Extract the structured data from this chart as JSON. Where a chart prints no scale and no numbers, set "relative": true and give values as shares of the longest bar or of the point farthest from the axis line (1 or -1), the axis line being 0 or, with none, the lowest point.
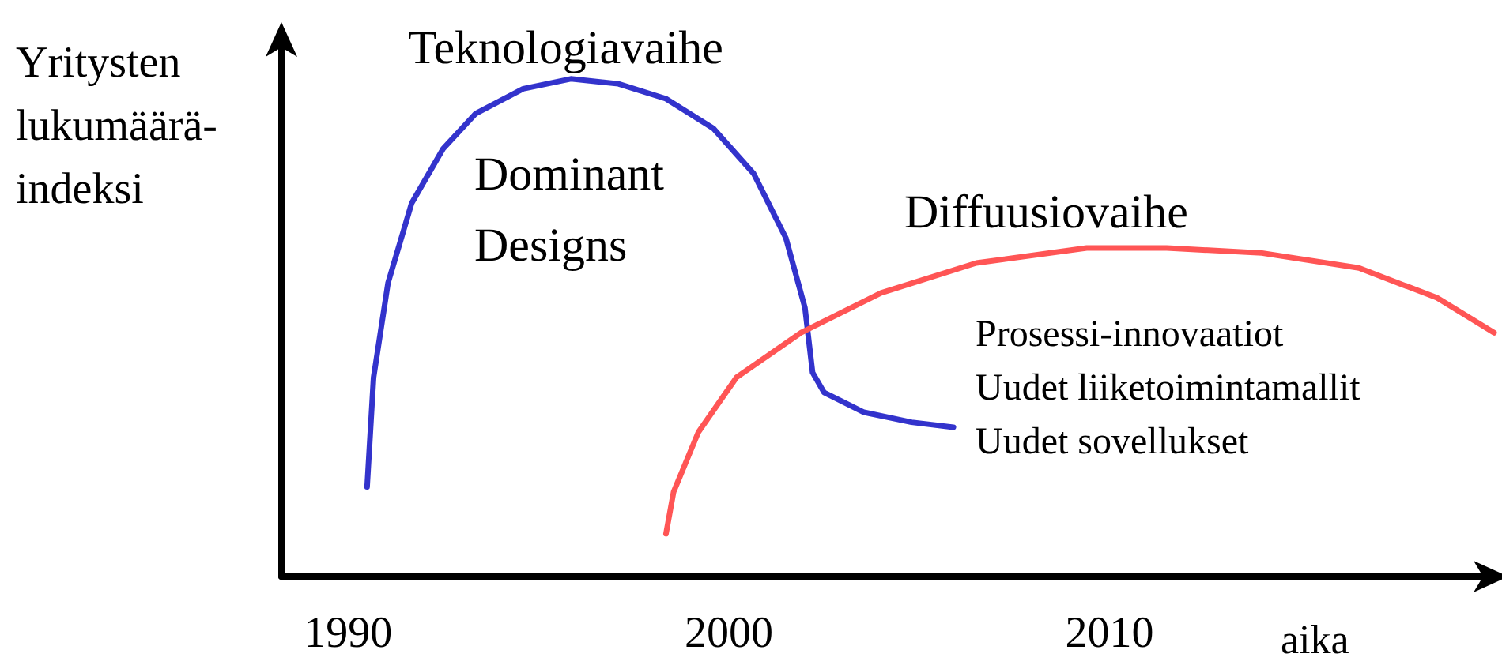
{
  "chart_data": {
    "type": "line",
    "relative": true,
    "xlabel": "aika",
    "ylabel": "Yritysten lukumäärä-indeksi",
    "xlim": [
      1988.25,
      2020.1
    ],
    "xticks": [
      1990,
      2000,
      2010
    ],
    "grid": false,
    "marker": "none",
    "line_style": "solid",
    "annotations": [
      "Teknologiavaihe",
      "Dominant Designs",
      "Diffuusiovaihe",
      "Prosessi-innovaatiot",
      "Uudet liiketoimintamallit",
      "Uudet sovellukset"
    ],
    "series": [
      {
        "color": "#3333cc",
        "x": [
          1990.5,
          1990.67,
          1991.05,
          1991.67,
          1992.5,
          1993.35,
          1994.6,
          1995.85,
          1997.1,
          1998.35,
          1999.6,
          2000.65,
          2001.5,
          2002.0,
          2002.2,
          2002.5,
          2003.55,
          2004.8,
          2005.9
        ],
        "values": [
          0.18,
          0.4,
          0.59,
          0.75,
          0.86,
          0.93,
          0.98,
          1,
          0.99,
          0.96,
          0.9,
          0.81,
          0.68,
          0.54,
          0.41,
          0.37,
          0.33,
          0.31,
          0.3
        ]
      },
      {
        "color": "#ff5555",
        "x": [
          1998.35,
          1998.55,
          1999.2,
          2000.2,
          2001.9,
          2004.0,
          2006.5,
          2009.4,
          2011.5,
          2014.0,
          2016.55,
          2018.6,
          2020.1
        ],
        "values": [
          0.086,
          0.17,
          0.29,
          0.4,
          0.49,
          0.57,
          0.63,
          0.66,
          0.66,
          0.65,
          0.62,
          0.56,
          0.49
        ]
      }
    ]
  }
}
